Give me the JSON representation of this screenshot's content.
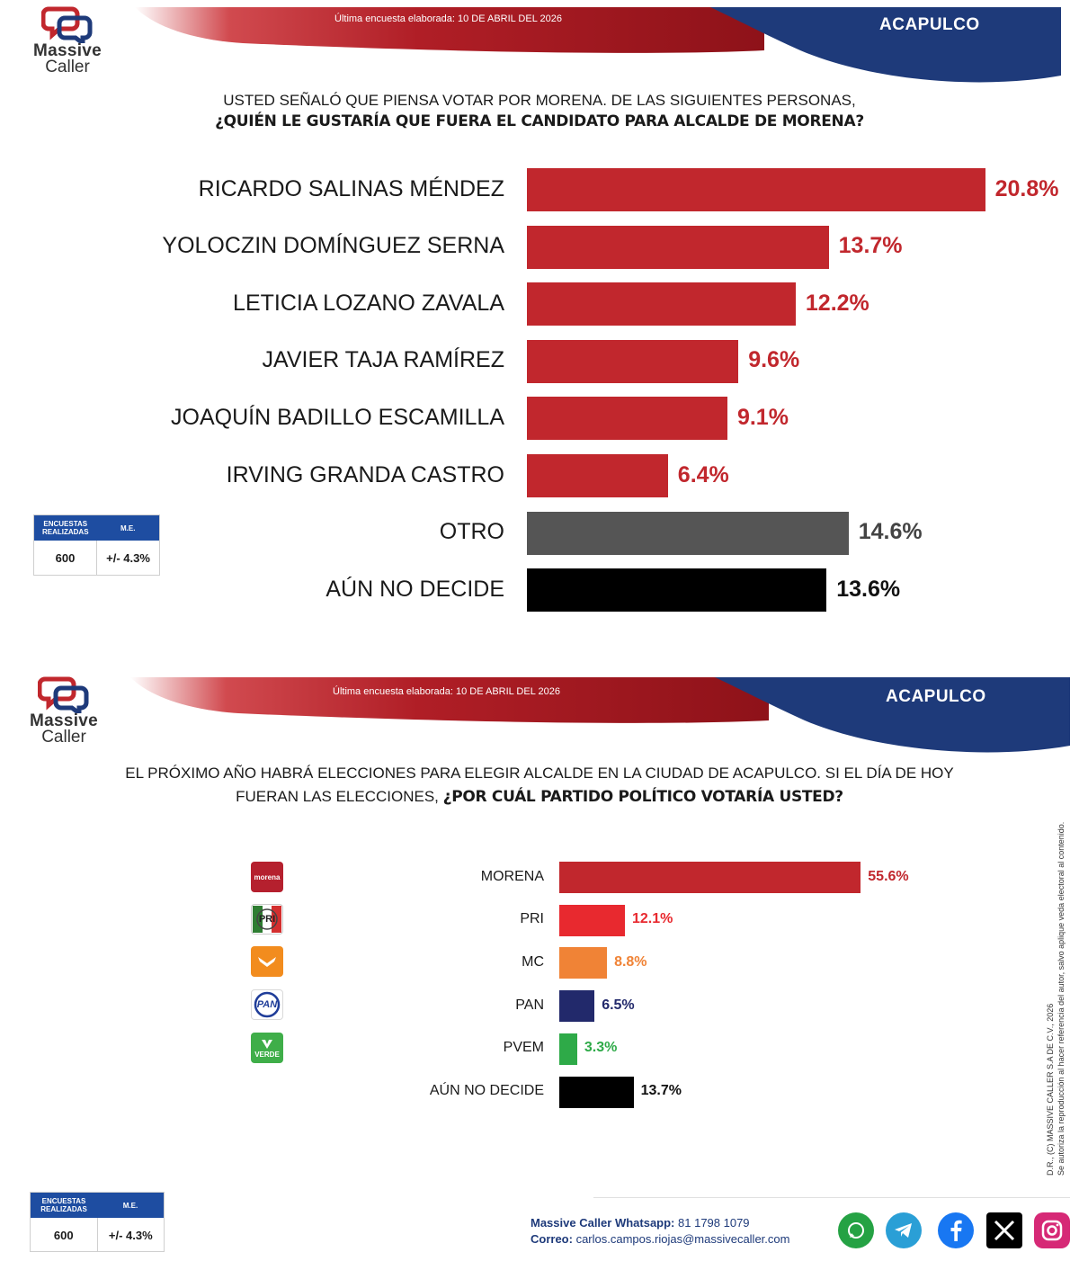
{
  "panel1": {
    "logo": {
      "line1": "Massive",
      "line2": "Caller",
      "tagline": ""
    },
    "header": {
      "date_text": "Última encuesta elaborada: 10 DE ABRIL DEL 2026",
      "city": "ACAPULCO"
    },
    "question": {
      "line1": "USTED SEÑALÓ QUE PIENSA VOTAR POR MORENA. DE LAS SIGUIENTES PERSONAS,",
      "line2": "¿QUIÉN LE GUSTARÍA QUE FUERA EL CANDIDATO PARA ALCALDE DE MORENA?"
    },
    "stats": {
      "h1": "ENCUESTAS REALIZADAS",
      "h2": "M.E.",
      "v1": "600",
      "v2": "+/- 4.3%"
    }
  },
  "panel2": {
    "logo": {
      "line1": "Massive",
      "line2": "Caller",
      "tagline": ""
    },
    "header": {
      "date_text": "Última encuesta elaborada: 10 DE ABRIL DEL 2026",
      "city": "ACAPULCO"
    },
    "question": {
      "line1": "EL PRÓXIMO AÑO HABRÁ ELECCIONES PARA ELEGIR ALCALDE EN LA CIUDAD DE ACAPULCO. SI EL DÍA DE HOY",
      "line2_plain": "FUERAN LAS ELECCIONES, ",
      "line2_bold": "¿POR CUÁL PARTIDO POLÍTICO VOTARÍA USTED?"
    },
    "party_logos": [
      {
        "text": "morena",
        "icon": "morena-logo",
        "color": "#b5202e"
      },
      {
        "text": "PRI",
        "icon": "pri-logo",
        "color": "#2e7d32"
      },
      {
        "text": "",
        "icon": "mc-logo",
        "color": "#f28c1e"
      },
      {
        "text": "PAN",
        "icon": "pan-logo",
        "color": "#1f3d99"
      },
      {
        "text": "VERDE",
        "icon": "verde-logo",
        "color": "#3fae49"
      }
    ],
    "stats": {
      "h1": "ENCUESTAS REALIZADAS",
      "h2": "M.E.",
      "v1": "600",
      "v2": "+/- 4.3%"
    },
    "side_note": {
      "line1": "D.R., (C) MASSIVE CALLER S.A DE C.V., 2026",
      "line2": "Se autoriza la reproducción al hacer referencia del autor, salvo aplique veda electoral al contenido."
    },
    "contact": {
      "whatsapp_label": "Massive Caller Whatsapp:",
      "whatsapp_value": "81 1798 1079",
      "email_label": "Correo:",
      "email_value": "carlos.campos.riojas@massivecaller.com"
    },
    "social_icons": [
      {
        "icon": "whatsapp-icon",
        "color": "#25a244"
      },
      {
        "icon": "telegram-icon",
        "color": "#2a9fd6"
      },
      {
        "icon": "facebook-icon",
        "color": "#1877f2"
      },
      {
        "icon": "x-icon",
        "color": "#000000"
      },
      {
        "icon": "instagram-icon",
        "color": "#d62976"
      }
    ]
  },
  "chart_data": [
    {
      "type": "bar",
      "orientation": "horizontal",
      "title": "¿QUIÉN LE GUSTARÍA QUE FUERA EL CANDIDATO PARA ALCALDE DE MORENA?",
      "categories": [
        "RICARDO SALINAS MÉNDEZ",
        "YOLOCZIN DOMÍNGUEZ SERNA",
        "LETICIA LOZANO ZAVALA",
        "JAVIER TAJA RAMÍREZ",
        "JOAQUÍN BADILLO ESCAMILLA",
        "IRVING GRANDA CASTRO",
        "OTRO",
        "AÚN NO DECIDE"
      ],
      "values": [
        20.8,
        13.7,
        12.2,
        9.6,
        9.1,
        6.4,
        14.6,
        13.6
      ],
      "labels": [
        "20.8%",
        "13.7%",
        "12.2%",
        "9.6%",
        "9.1%",
        "6.4%",
        "14.6%",
        "13.6%"
      ],
      "colors": [
        "#c1272d",
        "#c1272d",
        "#c1272d",
        "#c1272d",
        "#c1272d",
        "#c1272d",
        "#555555",
        "#000000"
      ],
      "label_colors": [
        "#c1272d",
        "#c1272d",
        "#c1272d",
        "#c1272d",
        "#c1272d",
        "#c1272d",
        "#444444",
        "#111111"
      ],
      "xlabel": "",
      "ylabel": "",
      "grid": false,
      "legend": "none"
    },
    {
      "type": "bar",
      "orientation": "horizontal",
      "title": "¿POR CUÁL PARTIDO POLÍTICO VOTARÍA USTED?",
      "categories": [
        "MORENA",
        "PRI",
        "MC",
        "PAN",
        "PVEM",
        "AÚN NO DECIDE"
      ],
      "values": [
        55.6,
        12.1,
        8.8,
        6.5,
        3.3,
        13.7
      ],
      "labels": [
        "55.6%",
        "12.1%",
        "8.8%",
        "6.5%",
        "3.3%",
        "13.7%"
      ],
      "colors": [
        "#c1272d",
        "#e8292f",
        "#f08336",
        "#22296b",
        "#2eaa48",
        "#000000"
      ],
      "label_colors": [
        "#c1272d",
        "#e8292f",
        "#f08336",
        "#22296b",
        "#2eaa48",
        "#111111"
      ],
      "xlabel": "",
      "ylabel": "",
      "grid": false,
      "legend": "none"
    }
  ]
}
